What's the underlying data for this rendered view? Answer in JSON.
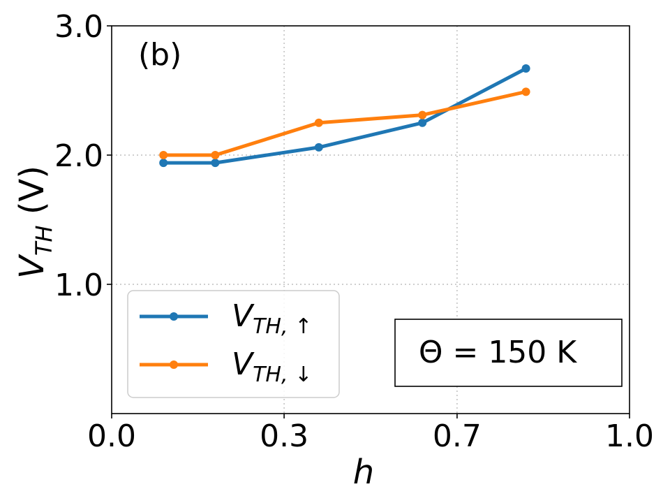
{
  "chart_data": {
    "type": "line",
    "panel_label": "(b)",
    "xlabel": "h",
    "ylabel": {
      "main": "V",
      "sub": "TH",
      "unit": " (V)"
    },
    "xlim": [
      0.0,
      1.0
    ],
    "ylim": [
      0.0,
      3.0
    ],
    "xticks": [
      {
        "value": 0.0,
        "label": "0.0"
      },
      {
        "value": 0.333,
        "label": "0.3"
      },
      {
        "value": 0.667,
        "label": "0.7"
      },
      {
        "value": 1.0,
        "label": "1.0"
      }
    ],
    "yticks": [
      {
        "value": 1.0,
        "label": "1.0"
      },
      {
        "value": 2.0,
        "label": "2.0"
      },
      {
        "value": 3.0,
        "label": "3.0"
      }
    ],
    "grid": true,
    "series": [
      {
        "name": "V_TH,↑",
        "label_main": "V",
        "label_sub": "TH, ↑",
        "color": "#1f77b4",
        "x": [
          0.1,
          0.2,
          0.4,
          0.6,
          0.8
        ],
        "y": [
          1.94,
          1.94,
          2.06,
          2.25,
          2.67
        ]
      },
      {
        "name": "V_TH,↓",
        "label_main": "V",
        "label_sub": "TH, ↓",
        "color": "#ff7f0e",
        "x": [
          0.1,
          0.2,
          0.4,
          0.6,
          0.8
        ],
        "y": [
          2.0,
          2.0,
          2.25,
          2.31,
          2.49
        ]
      }
    ],
    "legend_position": "lower-left",
    "annotation": "Θ = 150 K",
    "annotation_position": "lower-right"
  }
}
